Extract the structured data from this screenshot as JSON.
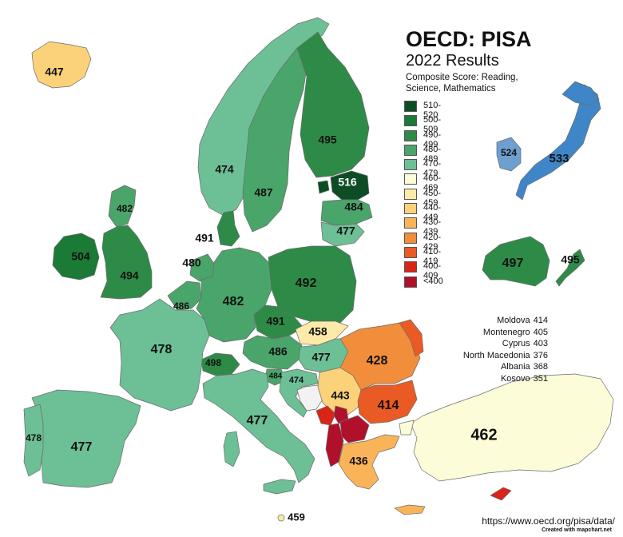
{
  "title": "OECD: PISA",
  "subtitle": "2022 Results",
  "description": "Composite Score: Reading, Science, Mathematics",
  "legend": [
    {
      "label": "510-520",
      "color": "#0d4d26"
    },
    {
      "label": "500-509",
      "color": "#1a7a36"
    },
    {
      "label": "490-499",
      "color": "#2e8b47"
    },
    {
      "label": "480-489",
      "color": "#4aa56a"
    },
    {
      "label": "470-479",
      "color": "#6dbf96"
    },
    {
      "label": "460-469",
      "color": "#fcfcd8"
    },
    {
      "label": "450-459",
      "color": "#fdeaa8"
    },
    {
      "label": "440-449",
      "color": "#fbd17a"
    },
    {
      "label": "430-439",
      "color": "#f9b45a"
    },
    {
      "label": "420-429",
      "color": "#f28d3c"
    },
    {
      "label": "410-419",
      "color": "#ea5a24"
    },
    {
      "label": "400-409",
      "color": "#db2418"
    },
    {
      "label": "<400",
      "color": "#b0102a"
    }
  ],
  "extra_scores": [
    {
      "country": "Moldova",
      "score": "414"
    },
    {
      "country": "Montenegro",
      "score": "405"
    },
    {
      "country": "Cyprus",
      "score": "403"
    },
    {
      "country": "North Macedonia",
      "score": "376"
    },
    {
      "country": "Albania",
      "score": "368"
    },
    {
      "country": "Kosovo",
      "score": "351"
    }
  ],
  "source_url": "https://www.oecd.org/pisa/data/",
  "credit": "Created with mapchart.net",
  "map_labels": {
    "iceland": "447",
    "norway": "474",
    "sweden": "487",
    "finland": "495",
    "estonia": "516",
    "latvia": "484",
    "lithuania": "477",
    "denmark": "491",
    "scotland": "482",
    "ireland": "504",
    "uk": "494",
    "netherlands": "480",
    "belgium": "486",
    "germany": "482",
    "poland": "492",
    "czechia": "491",
    "slovakia": "458",
    "austria": "486",
    "hungary": "477",
    "switzerland": "498",
    "france": "478",
    "slovenia": "484",
    "croatia": "474",
    "italy": "477",
    "romania": "428",
    "serbia": "443",
    "bulgaria": "414",
    "greece": "436",
    "turkey": "462",
    "spain": "477",
    "portugal": "478",
    "malta": "459",
    "korea": "524",
    "japan": "533",
    "australia": "497",
    "new_zealand": "495"
  }
}
